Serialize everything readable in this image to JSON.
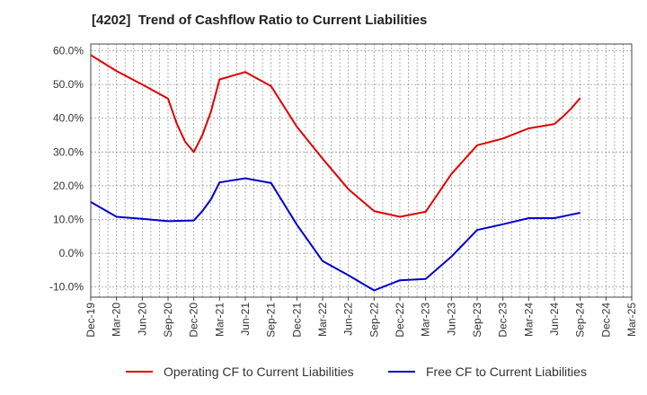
{
  "chart_data": {
    "type": "line",
    "title": "[4202]  Trend of Cashflow Ratio to Current Liabilities",
    "xlabel": "",
    "ylabel": "",
    "x_ticks": [
      "Dec-19",
      "Mar-20",
      "Jun-20",
      "Sep-20",
      "Dec-20",
      "Mar-21",
      "Jun-21",
      "Sep-21",
      "Dec-21",
      "Mar-22",
      "Jun-22",
      "Sep-22",
      "Dec-22",
      "Mar-23",
      "Jun-23",
      "Sep-23",
      "Dec-23",
      "Mar-24",
      "Jun-24",
      "Sep-24",
      "Dec-24",
      "Mar-25"
    ],
    "y_ticks": [
      "60.0%",
      "50.0%",
      "40.0%",
      "30.0%",
      "20.0%",
      "10.0%",
      "0.0%",
      "-10.0%"
    ],
    "ylim": [
      -13,
      62
    ],
    "grid": true,
    "legend_position": "bottom",
    "series": [
      {
        "name": "Operating CF to Current Liabilities",
        "color": "#e00000",
        "x": [
          "Dec-19",
          "Mar-20",
          "Jun-20",
          "Sep-20",
          "Oct-20",
          "Nov-20",
          "Dec-20",
          "Jan-21",
          "Feb-21",
          "Mar-21",
          "Jun-21",
          "Sep-21",
          "Dec-21",
          "Mar-22",
          "Jun-22",
          "Sep-22",
          "Dec-22",
          "Mar-23",
          "Jun-23",
          "Sep-23",
          "Dec-23",
          "Mar-24",
          "Jun-24",
          "Jul-24",
          "Aug-24",
          "Sep-24"
        ],
        "values": [
          58.7,
          54.0,
          50.0,
          45.8,
          38.5,
          33.0,
          30.0,
          35.0,
          42.0,
          51.5,
          53.7,
          49.5,
          37.5,
          28.0,
          19.0,
          12.5,
          10.8,
          12.3,
          23.5,
          32.0,
          34.0,
          37.0,
          38.3,
          40.5,
          43.0,
          46.0
        ]
      },
      {
        "name": "Free CF to Current Liabilities",
        "color": "#0000cc",
        "x": [
          "Dec-19",
          "Mar-20",
          "Jun-20",
          "Sep-20",
          "Dec-20",
          "Jan-21",
          "Feb-21",
          "Mar-21",
          "Jun-21",
          "Sep-21",
          "Dec-21",
          "Mar-22",
          "Jun-22",
          "Sep-22",
          "Dec-22",
          "Mar-23",
          "Jun-23",
          "Sep-23",
          "Dec-23",
          "Mar-24",
          "Jun-24",
          "Sep-24"
        ],
        "values": [
          15.2,
          10.8,
          10.2,
          9.5,
          9.7,
          12.5,
          16.0,
          21.0,
          22.2,
          20.8,
          8.5,
          -2.3,
          -6.5,
          -11.0,
          -8.0,
          -7.6,
          -1.0,
          6.9,
          8.6,
          10.4,
          10.4,
          12.0
        ]
      }
    ]
  }
}
